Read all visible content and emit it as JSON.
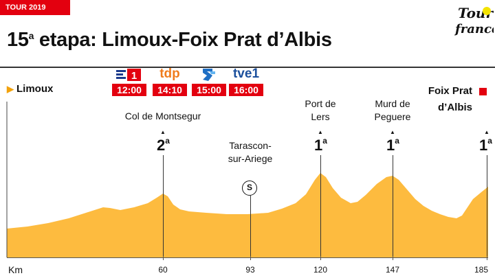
{
  "header": {
    "tag": "TOUR 2019"
  },
  "title": {
    "number": "15",
    "ordinal": "a",
    "text": " etapa: Limoux-Foix Prat d’Albis"
  },
  "start": {
    "label": "Limoux"
  },
  "finish": {
    "line1": "Foix Prat",
    "line2": "d’Albis"
  },
  "broadcasters": [
    {
      "channel": "TV Euskadi 1",
      "time": "12:00"
    },
    {
      "channel": "tdp",
      "time": "14:10"
    },
    {
      "channel": "Teledeporte",
      "time": "15:00"
    },
    {
      "channel": "tve1",
      "time": "16:00"
    }
  ],
  "climbs": [
    {
      "name": "Col de Montsegur",
      "category": "2",
      "ordinal": "a",
      "km": 60
    },
    {
      "name_line1": "Port de",
      "name_line2": "Lers",
      "category": "1",
      "ordinal": "a",
      "km": 120
    },
    {
      "name_line1": "Murd de",
      "name_line2": "Peguere",
      "category": "1",
      "ordinal": "a",
      "km": 147
    },
    {
      "category": "1",
      "ordinal": "a",
      "km": 185
    }
  ],
  "sprint": {
    "symbol": "S",
    "name_line1": "Tarascon-",
    "name_line2": "sur-Ariege",
    "km": 93
  },
  "axis": {
    "unit": "Km",
    "ticks": [
      "60",
      "93",
      "120",
      "147",
      "185"
    ]
  },
  "colors": {
    "profile": "#fdbb3f",
    "accent": "#e3000f",
    "start_marker": "#f2a20c"
  }
}
